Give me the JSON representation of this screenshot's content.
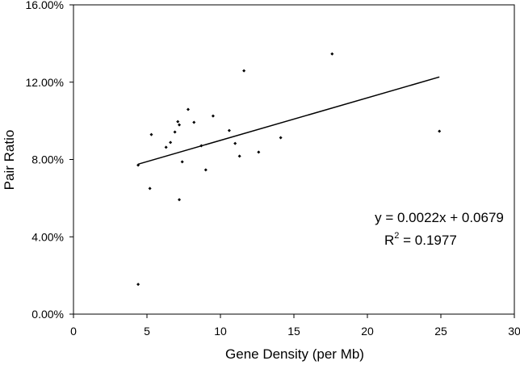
{
  "chart_data": {
    "type": "scatter",
    "xlabel": "Gene Density (per Mb)",
    "ylabel": "Pair Ratio",
    "xlim": [
      0,
      30
    ],
    "ylim": [
      0,
      0.16
    ],
    "x_ticks": [
      0,
      5,
      10,
      15,
      20,
      25,
      30
    ],
    "x_tick_labels": [
      "0",
      "5",
      "10",
      "15",
      "20",
      "25",
      "30"
    ],
    "y_ticks": [
      0,
      0.04,
      0.08,
      0.12,
      0.16
    ],
    "y_tick_labels": [
      "0.00%",
      "4.00%",
      "8.00%",
      "12.00%",
      "16.00%"
    ],
    "grid": false,
    "legend": "none",
    "points": [
      {
        "x": 4.4,
        "y": 0.0771
      },
      {
        "x": 4.4,
        "y": 0.0154
      },
      {
        "x": 5.2,
        "y": 0.065
      },
      {
        "x": 5.3,
        "y": 0.0929
      },
      {
        "x": 6.3,
        "y": 0.0863
      },
      {
        "x": 6.6,
        "y": 0.0888
      },
      {
        "x": 6.9,
        "y": 0.0942
      },
      {
        "x": 7.1,
        "y": 0.0996
      },
      {
        "x": 7.2,
        "y": 0.0979
      },
      {
        "x": 7.2,
        "y": 0.0592
      },
      {
        "x": 7.4,
        "y": 0.0788
      },
      {
        "x": 7.8,
        "y": 0.1059
      },
      {
        "x": 8.2,
        "y": 0.0992
      },
      {
        "x": 8.7,
        "y": 0.0871
      },
      {
        "x": 9.0,
        "y": 0.0746
      },
      {
        "x": 9.5,
        "y": 0.1025
      },
      {
        "x": 10.6,
        "y": 0.095
      },
      {
        "x": 11.0,
        "y": 0.0883
      },
      {
        "x": 11.3,
        "y": 0.0817
      },
      {
        "x": 11.6,
        "y": 0.1259
      },
      {
        "x": 12.6,
        "y": 0.0838
      },
      {
        "x": 14.1,
        "y": 0.0913
      },
      {
        "x": 17.6,
        "y": 0.1346
      },
      {
        "x": 24.9,
        "y": 0.0946
      }
    ],
    "trendline": {
      "slope": 0.0022,
      "intercept": 0.0679,
      "x_range": [
        4.4,
        24.9
      ]
    },
    "annotations": {
      "equation": "y = 0.0022x + 0.0679",
      "r2_prefix": "R",
      "r2_sup": "2",
      "r2_value": " = 0.1977"
    },
    "colors": {
      "marker": "#000000",
      "line": "#000000",
      "axis": "#000000",
      "background": "#ffffff"
    }
  }
}
